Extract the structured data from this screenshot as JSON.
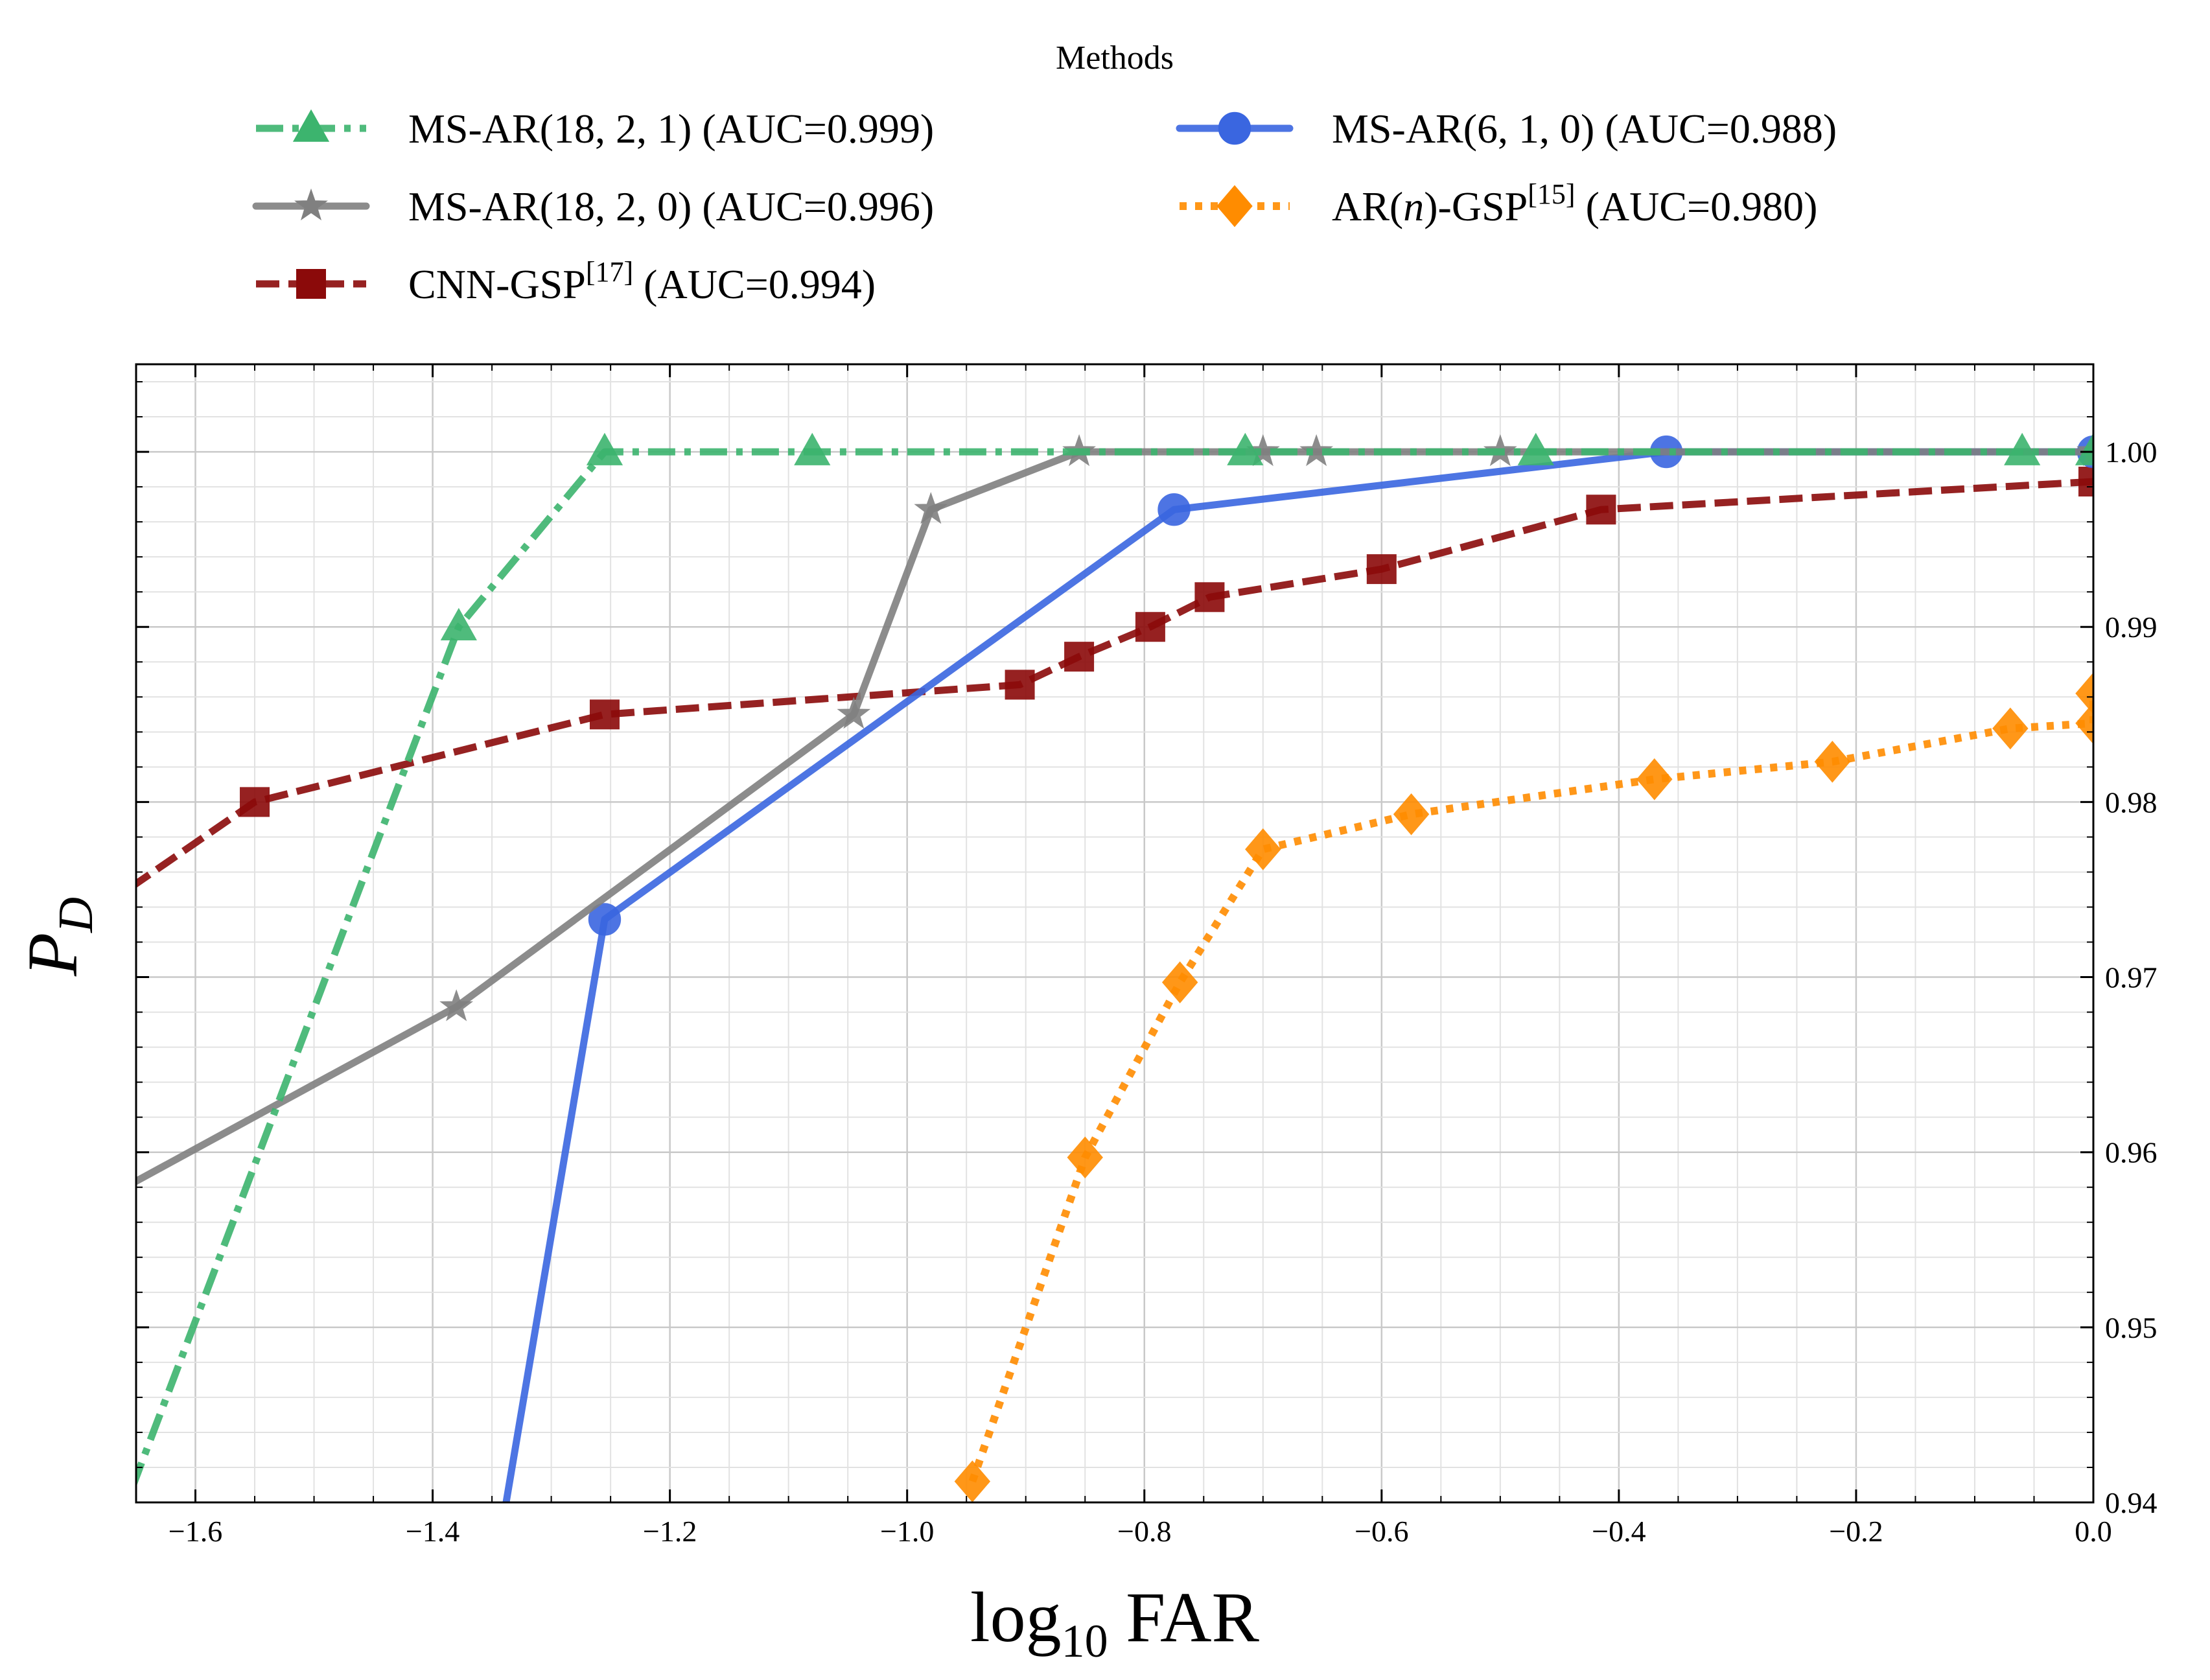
{
  "chart_data": {
    "type": "line",
    "xlabel": "log₁₀ FAR",
    "ylabel": "P_D",
    "xlim": [
      -1.65,
      0.0
    ],
    "ylim": [
      0.94,
      1.005
    ],
    "y_axis_side": "right",
    "grid": true,
    "legend": {
      "title": "Methods",
      "placement": "top-center",
      "columns": 2
    },
    "x_ticks": [
      -1.6,
      -1.4,
      -1.2,
      -1.0,
      -0.8,
      -0.6,
      -0.4,
      -0.2,
      0.0
    ],
    "x_tick_labels": [
      "−1.6",
      "−1.4",
      "−1.2",
      "−1.0",
      "−0.8",
      "−0.6",
      "−0.4",
      "−0.2",
      "0.0"
    ],
    "y_ticks": [
      0.94,
      0.95,
      0.96,
      0.97,
      0.98,
      0.99,
      1.0
    ],
    "y_tick_labels": [
      "0.94",
      "0.95",
      "0.96",
      "0.97",
      "0.98",
      "0.99",
      "1.00"
    ],
    "series": [
      {
        "name": "MS-AR(18,2,1) (AUC=0.999)",
        "label_main": "MS-AR(18, 2, 1) (AUC=0.999)",
        "color": "#3cb46e",
        "dash": "dashdot",
        "marker": "triangle",
        "x": [
          -1.7,
          -1.378,
          -1.255,
          -1.08,
          -0.715,
          -0.47,
          -0.06,
          0.0
        ],
        "y": [
          0.9325,
          0.99,
          1.0,
          1.0,
          1.0,
          1.0,
          1.0,
          1.0
        ]
      },
      {
        "name": "MS-AR(18,2,0) (AUC=0.996)",
        "label_main": "MS-AR(18, 2, 0) (AUC=0.996)",
        "color": "#808080",
        "dash": "solid",
        "marker": "star",
        "x": [
          -1.7,
          -1.38,
          -1.045,
          -0.98,
          -0.855,
          -0.7,
          -0.655,
          -0.5,
          0.0
        ],
        "y": [
          0.9565,
          0.9683,
          0.985,
          0.9967,
          1.0,
          1.0,
          1.0,
          1.0,
          1.0
        ]
      },
      {
        "name": "CNN-GSP[17] (AUC=0.994)",
        "label_main": "CNN-GSP",
        "label_sup": "[17]",
        "label_tail": " (AUC=0.994)",
        "color": "#8b0a0a",
        "dash": "dashed",
        "marker": "square",
        "x": [
          -1.7,
          -1.55,
          -1.255,
          -0.905,
          -0.855,
          -0.795,
          -0.745,
          -0.6,
          -0.415,
          0.0
        ],
        "y": [
          0.973,
          0.98,
          0.985,
          0.9867,
          0.9883,
          0.99,
          0.9917,
          0.9933,
          0.9967,
          0.9983
        ]
      },
      {
        "name": "MS-AR(6,1,0) (AUC=0.988)",
        "label_main": "MS-AR(6, 1, 0) (AUC=0.988)",
        "color": "#3a66e0",
        "dash": "solid",
        "marker": "circle",
        "x": [
          -1.36,
          -1.255,
          -0.775,
          -0.36,
          0.0
        ],
        "y": [
          0.9312,
          0.9733,
          0.9967,
          1.0,
          1.0
        ]
      },
      {
        "name": "AR(n)-GSP[15] (AUC=0.980)",
        "label_pre": "AR(",
        "label_ital": "n",
        "label_main": ")-GSP",
        "label_sup": "[15]",
        "label_tail": " (AUC=0.980)",
        "color": "#ff8c00",
        "dash": "dotted",
        "marker": "diamond",
        "x": [
          -0.945,
          -0.85,
          -0.77,
          -0.7,
          -0.575,
          -0.37,
          -0.22,
          -0.07,
          0.0,
          0.0
        ],
        "y": [
          0.9412,
          0.9597,
          0.9697,
          0.9773,
          0.9793,
          0.9813,
          0.9823,
          0.9842,
          0.9845,
          0.9862
        ]
      }
    ]
  }
}
